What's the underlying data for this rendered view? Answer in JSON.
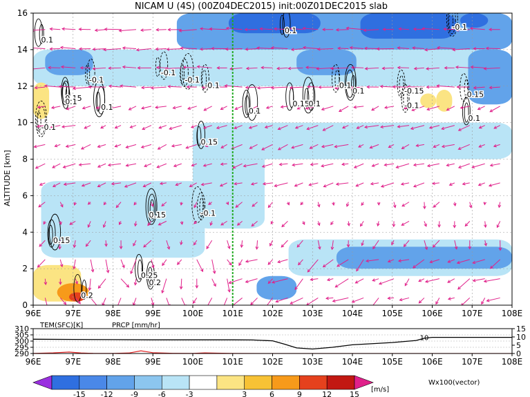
{
  "title": "NICAM U (4S) (00Z04DEC2015) init:00Z01DEC2015 slab",
  "colors": {
    "neg_strong": "#2f6fe0",
    "neg_mid": "#62a3ea",
    "neg_light": "#b9e4f6",
    "pos_light": "#fbe483",
    "pos_mid": "#f79a1a",
    "pos_strong": "#e5411d",
    "vector": "#e0208a",
    "prcp": "#e02020",
    "reference_line": "#22aa22"
  },
  "chart_data": [
    {
      "type": "heatmap",
      "title": "NICAM U (4S) (00Z04DEC2015) init:00Z01DEC2015 slab",
      "xlabel": "",
      "ylabel": "ALTITUDE [km]",
      "xlim": [
        96,
        108
      ],
      "ylim": [
        0,
        16
      ],
      "x_ticks": [
        "96E",
        "97E",
        "98E",
        "99E",
        "100E",
        "101E",
        "102E",
        "103E",
        "104E",
        "105E",
        "106E",
        "107E",
        "108E"
      ],
      "y_ticks": [
        "0",
        "2",
        "4",
        "6",
        "8",
        "10",
        "12",
        "14",
        "16"
      ],
      "grid": true,
      "reference_line_lon": 101,
      "shaded_regions": [
        {
          "level": -9,
          "lon": [
            100.9,
            103.2
          ],
          "alt": [
            14.9,
            16.0
          ]
        },
        {
          "level": -9,
          "lon": [
            104.2,
            106.6
          ],
          "alt": [
            14.6,
            16.0
          ]
        },
        {
          "level": -9,
          "lon": [
            106.7,
            107.4
          ],
          "alt": [
            15.2,
            16.0
          ]
        },
        {
          "level": -6,
          "lon": [
            99.6,
            108.0
          ],
          "alt": [
            14.0,
            16.0
          ]
        },
        {
          "level": -6,
          "lon": [
            102.6,
            104.1
          ],
          "alt": [
            12.6,
            14.0
          ]
        },
        {
          "level": -6,
          "lon": [
            106.9,
            108.0
          ],
          "alt": [
            11.0,
            14.0
          ]
        },
        {
          "level": -6,
          "lon": [
            96.3,
            97.5
          ],
          "alt": [
            12.6,
            14.0
          ]
        },
        {
          "level": -3,
          "lon": [
            96.0,
            108.0
          ],
          "alt": [
            12.0,
            14.0
          ]
        },
        {
          "level": -3,
          "lon": [
            100.0,
            101.8
          ],
          "alt": [
            4.2,
            10.0
          ]
        },
        {
          "level": -3,
          "lon": [
            101.3,
            108.0
          ],
          "alt": [
            8.0,
            10.0
          ]
        },
        {
          "level": -3,
          "lon": [
            102.4,
            108.0
          ],
          "alt": [
            1.6,
            3.6
          ]
        },
        {
          "level": -3,
          "lon": [
            96.2,
            100.3
          ],
          "alt": [
            2.6,
            6.8
          ]
        },
        {
          "level": -6,
          "lon": [
            103.6,
            108.0
          ],
          "alt": [
            2.0,
            3.2
          ]
        },
        {
          "level": -6,
          "lon": [
            101.6,
            102.6
          ],
          "alt": [
            0.3,
            1.6
          ]
        },
        {
          "level": 3,
          "lon": [
            96.0,
            96.4
          ],
          "alt": [
            10.2,
            12.2
          ]
        },
        {
          "level": 3,
          "lon": [
            96.0,
            97.2
          ],
          "alt": [
            0.2,
            2.2
          ]
        },
        {
          "level": 3,
          "lon": [
            105.7,
            106.1
          ],
          "alt": [
            10.8,
            11.6
          ]
        },
        {
          "level": 3,
          "lon": [
            106.1,
            106.5
          ],
          "alt": [
            10.6,
            11.8
          ]
        },
        {
          "level": 6,
          "lon": [
            96.6,
            97.4
          ],
          "alt": [
            0.2,
            1.2
          ]
        },
        {
          "level": 9,
          "lon": [
            96.9,
            97.3
          ],
          "alt": [
            0.2,
            0.7
          ]
        }
      ],
      "contour_labels": [
        {
          "text": "0.1",
          "lon": 96.2,
          "alt": 14.4
        },
        {
          "text": "0.15",
          "lon": 96.8,
          "alt": 11.2
        },
        {
          "text": "0.1",
          "lon": 96.8,
          "alt": 11.0
        },
        {
          "text": "-0.1",
          "lon": 97.4,
          "alt": 12.2
        },
        {
          "text": "0.1",
          "lon": 97.7,
          "alt": 10.7
        },
        {
          "text": "-0.1",
          "lon": 96.2,
          "alt": 9.6
        },
        {
          "text": "-0.1",
          "lon": 99.2,
          "alt": 12.6
        },
        {
          "text": "-0.1",
          "lon": 99.8,
          "alt": 12.2
        },
        {
          "text": "-0.1",
          "lon": 100.3,
          "alt": 11.9
        },
        {
          "text": "0.1",
          "lon": 101.4,
          "alt": 10.5
        },
        {
          "text": "0.15",
          "lon": 100.2,
          "alt": 8.8
        },
        {
          "text": "0.1",
          "lon": 102.3,
          "alt": 14.9
        },
        {
          "text": "0.15",
          "lon": 102.5,
          "alt": 10.9
        },
        {
          "text": "0.1",
          "lon": 102.9,
          "alt": 10.9
        },
        {
          "text": "-0.1",
          "lon": 103.6,
          "alt": 11.9
        },
        {
          "text": "0.1",
          "lon": 104.0,
          "alt": 11.6
        },
        {
          "text": "-0.15",
          "lon": 105.3,
          "alt": 11.6
        },
        {
          "text": "-0.1",
          "lon": 105.3,
          "alt": 10.8
        },
        {
          "text": "-0.1",
          "lon": 106.5,
          "alt": 15.1
        },
        {
          "text": "-0.15",
          "lon": 106.8,
          "alt": 11.4
        },
        {
          "text": "0.1",
          "lon": 106.9,
          "alt": 10.1
        },
        {
          "text": "0.15",
          "lon": 96.5,
          "alt": 3.4
        },
        {
          "text": "0.15",
          "lon": 98.9,
          "alt": 4.8
        },
        {
          "text": "-0.1",
          "lon": 100.2,
          "alt": 4.9
        },
        {
          "text": "0.25",
          "lon": 98.7,
          "alt": 1.5
        },
        {
          "text": "0.2",
          "lon": 98.9,
          "alt": 1.1
        },
        {
          "text": "0.2",
          "lon": 97.2,
          "alt": 0.4
        }
      ]
    },
    {
      "type": "line",
      "title": "",
      "xlim": [
        96,
        108
      ],
      "x_ticks": [
        "96E",
        "97E",
        "98E",
        "99E",
        "100E",
        "101E",
        "102E",
        "103E",
        "104E",
        "105E",
        "106E",
        "107E",
        "108E"
      ],
      "left_axis": {
        "label": "TEM(SFC)[K]",
        "ticks": [
          "290",
          "295",
          "300",
          "305",
          "310"
        ],
        "ylim": [
          290,
          310
        ]
      },
      "right_axis": {
        "label": "PRCP [mm/hr]",
        "ticks": [
          "0",
          "5",
          "10",
          "15"
        ],
        "ylim": [
          0,
          15
        ]
      },
      "series": [
        {
          "name": "TEM(SFC)[K]",
          "axis": "left",
          "x": [
            96,
            97,
            98,
            99,
            100,
            101,
            101.5,
            102,
            102.3,
            102.6,
            103.0,
            103.5,
            104,
            105,
            105.6,
            105.8,
            106,
            107,
            108
          ],
          "y": [
            301.5,
            301.3,
            301.2,
            301.0,
            301.0,
            301.0,
            300.9,
            300.2,
            297.5,
            294.5,
            293.6,
            295.0,
            297.0,
            298.8,
            300.5,
            302.3,
            303.0,
            303.0,
            303.0
          ]
        },
        {
          "name": "PRCP [mm/hr]",
          "axis": "right",
          "x": [
            96,
            96.5,
            96.9,
            97.2,
            97.5,
            98,
            98.4,
            98.7,
            99.0,
            99.5,
            100,
            100.3,
            100.6,
            101,
            102,
            103,
            104,
            105,
            106,
            107,
            108
          ],
          "y": [
            0.05,
            0.4,
            0.9,
            0.3,
            0.1,
            0.05,
            0.3,
            1.6,
            0.5,
            0.1,
            0.05,
            0.4,
            0.2,
            0.05,
            0,
            0,
            0,
            0,
            0,
            0,
            0
          ]
        }
      ],
      "annotations": [
        {
          "text": "10",
          "lon": 105.8
        }
      ]
    }
  ],
  "colorbar": {
    "levels": [
      "-15",
      "-12",
      "-9",
      "-6",
      "-3",
      "3",
      "6",
      "9",
      "12",
      "15"
    ],
    "unit": "[m/s]",
    "colors": [
      "#9a2fe0",
      "#2f6fe0",
      "#4a88e8",
      "#62a3ea",
      "#8cc6ef",
      "#b9e4f6",
      "#ffffff",
      "#fbe483",
      "#f7c235",
      "#f79a1a",
      "#e5411d",
      "#c21812",
      "#e0208a"
    ]
  },
  "vector_label": "Wx100(vector)"
}
